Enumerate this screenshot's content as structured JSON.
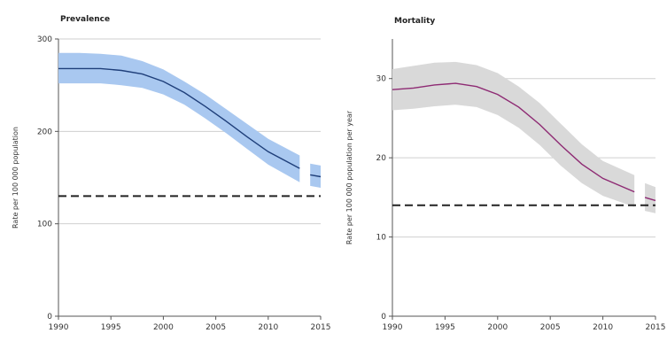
{
  "chart_data": [
    {
      "type": "line",
      "title": "Prevalence",
      "xlabel": "",
      "ylabel": "Rate per 100 000 population",
      "xlim": [
        1990,
        2015
      ],
      "ylim": [
        0,
        300
      ],
      "xticks": [
        1990,
        1995,
        2000,
        2005,
        2010,
        2015
      ],
      "yticks": [
        0,
        100,
        200,
        300
      ],
      "grid": "horizontal",
      "colors": {
        "band": "#a9c8f0",
        "line": "#1f3f7a",
        "target": "#222222"
      },
      "series": [
        {
          "x": [
            1990,
            1992,
            1994,
            1996,
            1998,
            2000,
            2002,
            2004,
            2006,
            2008,
            2010,
            2013
          ],
          "values": [
            268,
            268,
            268,
            266,
            262,
            254,
            242,
            227,
            211,
            194,
            178,
            160
          ],
          "upper": [
            285,
            285,
            284,
            282,
            276,
            267,
            254,
            240,
            224,
            208,
            192,
            174
          ],
          "lower": [
            252,
            252,
            252,
            250,
            247,
            240,
            229,
            214,
            198,
            181,
            164,
            145
          ]
        },
        {
          "x": [
            2014,
            2015
          ],
          "values": [
            153,
            151
          ],
          "upper": [
            165,
            163
          ],
          "lower": [
            141,
            139
          ]
        }
      ],
      "target_line": 130
    },
    {
      "type": "line",
      "title": "Mortality",
      "xlabel": "",
      "ylabel": "Rate per 100 000 population per year",
      "xlim": [
        1990,
        2015
      ],
      "ylim": [
        0,
        35
      ],
      "xticks": [
        1990,
        1995,
        2000,
        2005,
        2010,
        2015
      ],
      "yticks": [
        0,
        10,
        20,
        30
      ],
      "grid": "horizontal",
      "colors": {
        "band": "#d9d9d9",
        "line": "#8e2a73",
        "target": "#222222"
      },
      "series": [
        {
          "x": [
            1990,
            1992,
            1994,
            1996,
            1998,
            2000,
            2002,
            2004,
            2006,
            2008,
            2010,
            2013
          ],
          "values": [
            28.6,
            28.8,
            29.2,
            29.4,
            29.0,
            28.0,
            26.4,
            24.2,
            21.6,
            19.2,
            17.4,
            15.7
          ],
          "upper": [
            31.2,
            31.6,
            32.0,
            32.1,
            31.7,
            30.7,
            29.0,
            26.9,
            24.3,
            21.7,
            19.6,
            17.8
          ],
          "lower": [
            26.0,
            26.2,
            26.5,
            26.7,
            26.4,
            25.4,
            23.8,
            21.6,
            19.0,
            16.8,
            15.2,
            13.8
          ]
        },
        {
          "x": [
            2014,
            2015
          ],
          "values": [
            15.0,
            14.6
          ],
          "upper": [
            16.8,
            16.3
          ],
          "lower": [
            13.3,
            13.0
          ]
        }
      ],
      "target_line": 14
    }
  ]
}
